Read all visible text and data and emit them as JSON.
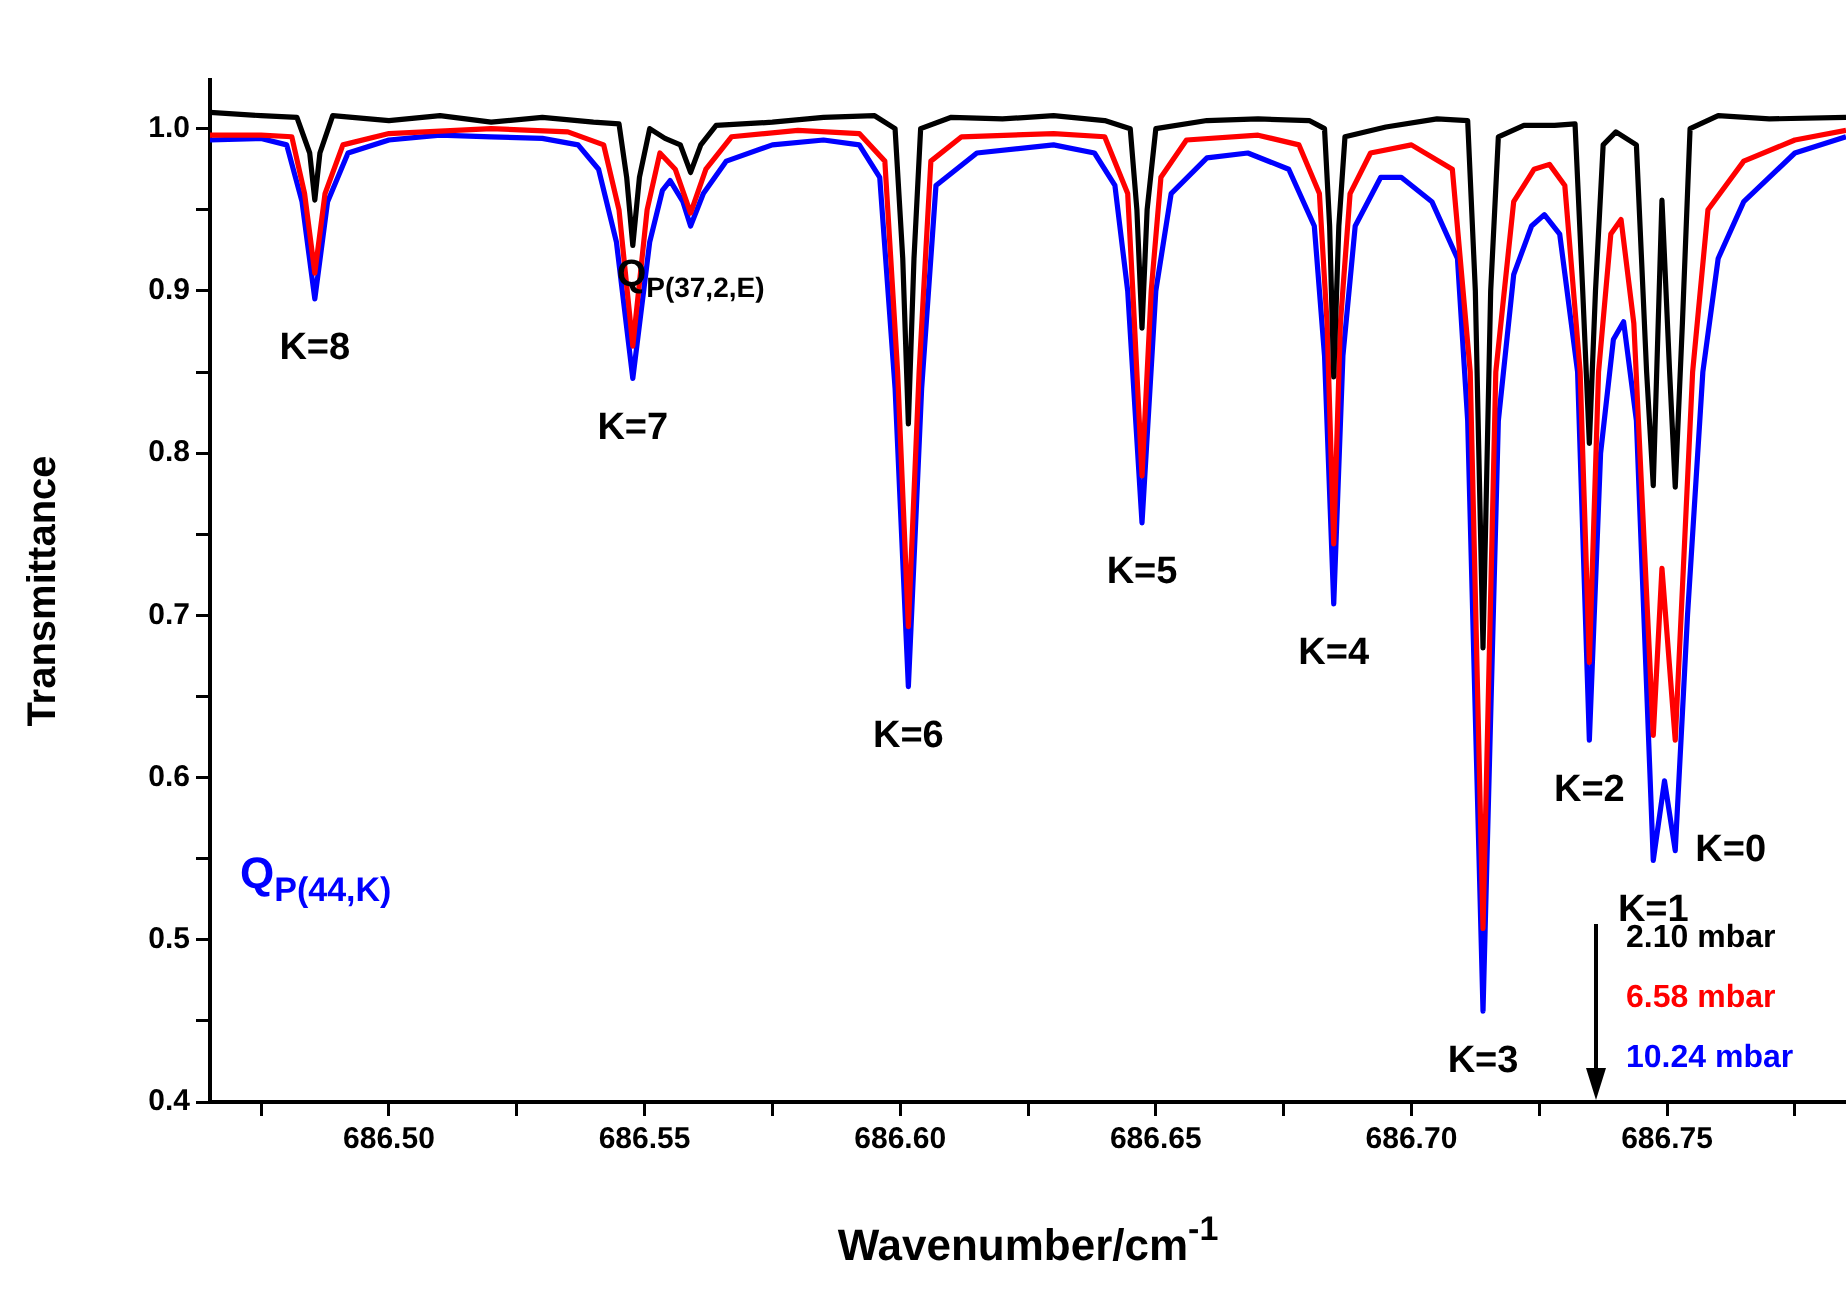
{
  "chart_data": {
    "type": "line",
    "xlabel": "Wavenumber/cm$^{-1}$",
    "ylabel": "Transmittance",
    "xlim": [
      686.465,
      686.785
    ],
    "ylim": [
      0.4,
      1.03
    ],
    "xticks": [
      {
        "value": 686.475,
        "label": null
      },
      {
        "value": 686.5,
        "label": "686.50"
      },
      {
        "value": 686.525,
        "label": null
      },
      {
        "value": 686.55,
        "label": "686.55"
      },
      {
        "value": 686.575,
        "label": null
      },
      {
        "value": 686.6,
        "label": "686.60"
      },
      {
        "value": 686.625,
        "label": null
      },
      {
        "value": 686.65,
        "label": "686.65"
      },
      {
        "value": 686.675,
        "label": null
      },
      {
        "value": 686.7,
        "label": "686.70"
      },
      {
        "value": 686.725,
        "label": null
      },
      {
        "value": 686.75,
        "label": "686.75"
      },
      {
        "value": 686.775,
        "label": null
      }
    ],
    "yticks": [
      {
        "value": 0.4,
        "label": "0.4"
      },
      {
        "value": 0.45,
        "label": null
      },
      {
        "value": 0.5,
        "label": "0.5"
      },
      {
        "value": 0.55,
        "label": null
      },
      {
        "value": 0.6,
        "label": "0.6"
      },
      {
        "value": 0.65,
        "label": null
      },
      {
        "value": 0.7,
        "label": "0.7"
      },
      {
        "value": 0.75,
        "label": null
      },
      {
        "value": 0.8,
        "label": "0.8"
      },
      {
        "value": 0.85,
        "label": null
      },
      {
        "value": 0.9,
        "label": "0.9"
      },
      {
        "value": 0.95,
        "label": null
      },
      {
        "value": 1.0,
        "label": "1.0"
      }
    ],
    "grid": false,
    "legend": "bottom right",
    "series": [
      {
        "name": "2.10 mbar",
        "color": "#000000",
        "x": [
          686.465,
          686.475,
          686.482,
          686.4845,
          686.4855,
          686.4865,
          686.489,
          686.5,
          686.51,
          686.52,
          686.53,
          686.54,
          686.545,
          686.5465,
          686.5477,
          686.549,
          686.551,
          686.554,
          686.557,
          686.559,
          686.561,
          686.564,
          686.575,
          686.585,
          686.595,
          686.599,
          686.6005,
          686.6016,
          686.6027,
          686.604,
          686.61,
          686.62,
          686.63,
          686.64,
          686.645,
          686.6463,
          686.6473,
          686.6483,
          686.65,
          686.66,
          686.67,
          686.68,
          686.683,
          686.684,
          686.6848,
          686.6858,
          686.687,
          686.695,
          686.705,
          686.711,
          686.7125,
          686.714,
          686.7155,
          686.717,
          686.722,
          686.728,
          686.732,
          686.7335,
          686.7348,
          686.736,
          686.7375,
          686.74,
          686.744,
          686.746,
          686.7473,
          686.749,
          686.7505,
          686.7516,
          686.753,
          686.7545,
          686.76,
          686.77,
          686.785
        ],
        "values": [
          1.01,
          1.008,
          1.007,
          0.985,
          0.956,
          0.985,
          1.008,
          1.005,
          1.008,
          1.004,
          1.007,
          1.004,
          1.003,
          0.97,
          0.928,
          0.97,
          1.0,
          0.994,
          0.99,
          0.973,
          0.99,
          1.002,
          1.004,
          1.007,
          1.008,
          1.0,
          0.92,
          0.818,
          0.92,
          1.0,
          1.007,
          1.006,
          1.008,
          1.005,
          1.0,
          0.95,
          0.877,
          0.95,
          1.0,
          1.005,
          1.006,
          1.005,
          1.0,
          0.94,
          0.847,
          0.94,
          0.995,
          1.001,
          1.006,
          1.005,
          0.9,
          0.68,
          0.9,
          0.995,
          1.002,
          1.002,
          1.003,
          0.9,
          0.806,
          0.9,
          0.99,
          0.998,
          0.99,
          0.85,
          0.78,
          0.956,
          0.85,
          0.779,
          0.88,
          1.0,
          1.008,
          1.006,
          1.007
        ]
      },
      {
        "name": "6.58 mbar",
        "color": "#ff0000",
        "x": [
          686.465,
          686.475,
          686.481,
          686.4835,
          686.4855,
          686.4875,
          686.491,
          686.5,
          686.52,
          686.535,
          686.542,
          686.545,
          686.5477,
          686.5505,
          686.553,
          686.556,
          686.559,
          686.562,
          686.567,
          686.58,
          686.592,
          686.597,
          686.5995,
          686.6016,
          686.6037,
          686.606,
          686.612,
          686.63,
          686.64,
          686.6445,
          686.6455,
          686.6473,
          686.6491,
          686.651,
          686.656,
          686.67,
          686.678,
          686.682,
          686.6835,
          686.6848,
          686.6861,
          686.688,
          686.692,
          686.7,
          686.708,
          686.7115,
          686.714,
          686.7165,
          686.72,
          686.724,
          686.727,
          686.73,
          686.733,
          686.7348,
          686.7366,
          686.739,
          686.741,
          686.7435,
          686.7473,
          686.749,
          686.7516,
          686.755,
          686.758,
          686.765,
          686.775,
          686.785
        ],
        "values": [
          0.996,
          0.996,
          0.995,
          0.96,
          0.911,
          0.96,
          0.99,
          0.997,
          1.0,
          0.998,
          0.99,
          0.95,
          0.866,
          0.95,
          0.985,
          0.975,
          0.948,
          0.975,
          0.995,
          0.999,
          0.997,
          0.98,
          0.85,
          0.693,
          0.85,
          0.98,
          0.995,
          0.997,
          0.995,
          0.96,
          0.9,
          0.786,
          0.9,
          0.97,
          0.993,
          0.996,
          0.99,
          0.96,
          0.88,
          0.744,
          0.88,
          0.96,
          0.985,
          0.99,
          0.975,
          0.85,
          0.507,
          0.85,
          0.955,
          0.975,
          0.978,
          0.965,
          0.85,
          0.671,
          0.85,
          0.935,
          0.944,
          0.88,
          0.626,
          0.729,
          0.623,
          0.85,
          0.95,
          0.98,
          0.993,
          0.999
        ]
      },
      {
        "name": "10.24 mbar",
        "color": "#0000ff",
        "x": [
          686.465,
          686.475,
          686.48,
          686.483,
          686.4855,
          686.488,
          686.492,
          686.5,
          686.51,
          686.52,
          686.53,
          686.537,
          686.541,
          686.5445,
          686.5477,
          686.551,
          686.5535,
          686.555,
          686.5575,
          686.559,
          686.5615,
          686.566,
          686.575,
          686.585,
          686.592,
          686.596,
          686.599,
          686.6016,
          686.6042,
          686.607,
          686.615,
          686.63,
          686.638,
          686.642,
          686.6445,
          686.6473,
          686.65,
          686.653,
          686.66,
          686.668,
          686.676,
          686.681,
          686.683,
          686.6848,
          686.6866,
          686.689,
          686.694,
          686.698,
          686.704,
          686.709,
          686.711,
          686.714,
          686.717,
          686.72,
          686.7235,
          686.726,
          686.729,
          686.7325,
          686.7348,
          686.737,
          686.7395,
          686.7415,
          686.744,
          686.7473,
          686.7495,
          686.7516,
          686.754,
          686.757,
          686.76,
          686.765,
          686.775,
          686.785
        ],
        "values": [
          0.993,
          0.994,
          0.99,
          0.955,
          0.895,
          0.955,
          0.985,
          0.993,
          0.996,
          0.995,
          0.994,
          0.99,
          0.975,
          0.93,
          0.846,
          0.93,
          0.962,
          0.968,
          0.955,
          0.94,
          0.96,
          0.98,
          0.99,
          0.993,
          0.99,
          0.97,
          0.84,
          0.656,
          0.84,
          0.965,
          0.985,
          0.99,
          0.985,
          0.965,
          0.9,
          0.757,
          0.9,
          0.96,
          0.982,
          0.985,
          0.975,
          0.94,
          0.86,
          0.707,
          0.86,
          0.94,
          0.97,
          0.97,
          0.955,
          0.92,
          0.82,
          0.456,
          0.82,
          0.91,
          0.94,
          0.947,
          0.935,
          0.85,
          0.623,
          0.8,
          0.87,
          0.881,
          0.82,
          0.549,
          0.598,
          0.555,
          0.7,
          0.85,
          0.92,
          0.955,
          0.985,
          0.995
        ]
      }
    ],
    "annotations": [
      {
        "text": "K=8",
        "x": 686.4855,
        "y": 0.895
      },
      {
        "text": "K=7",
        "x": 686.5477,
        "y": 0.846
      },
      {
        "text": "Q$_{P(37,2,E)}$",
        "x": 686.559,
        "y": 0.94
      },
      {
        "text": "K=6",
        "x": 686.6016,
        "y": 0.656
      },
      {
        "text": "K=5",
        "x": 686.6473,
        "y": 0.757
      },
      {
        "text": "K=4",
        "x": 686.6848,
        "y": 0.707
      },
      {
        "text": "K=3",
        "x": 686.714,
        "y": 0.456
      },
      {
        "text": "K=2",
        "x": 686.7348,
        "y": 0.623
      },
      {
        "text": "K=1",
        "x": 686.7473,
        "y": 0.549
      },
      {
        "text": "K=0",
        "x": 686.7516,
        "y": 0.555
      },
      "Q$_{P(44,K)}$"
    ]
  }
}
